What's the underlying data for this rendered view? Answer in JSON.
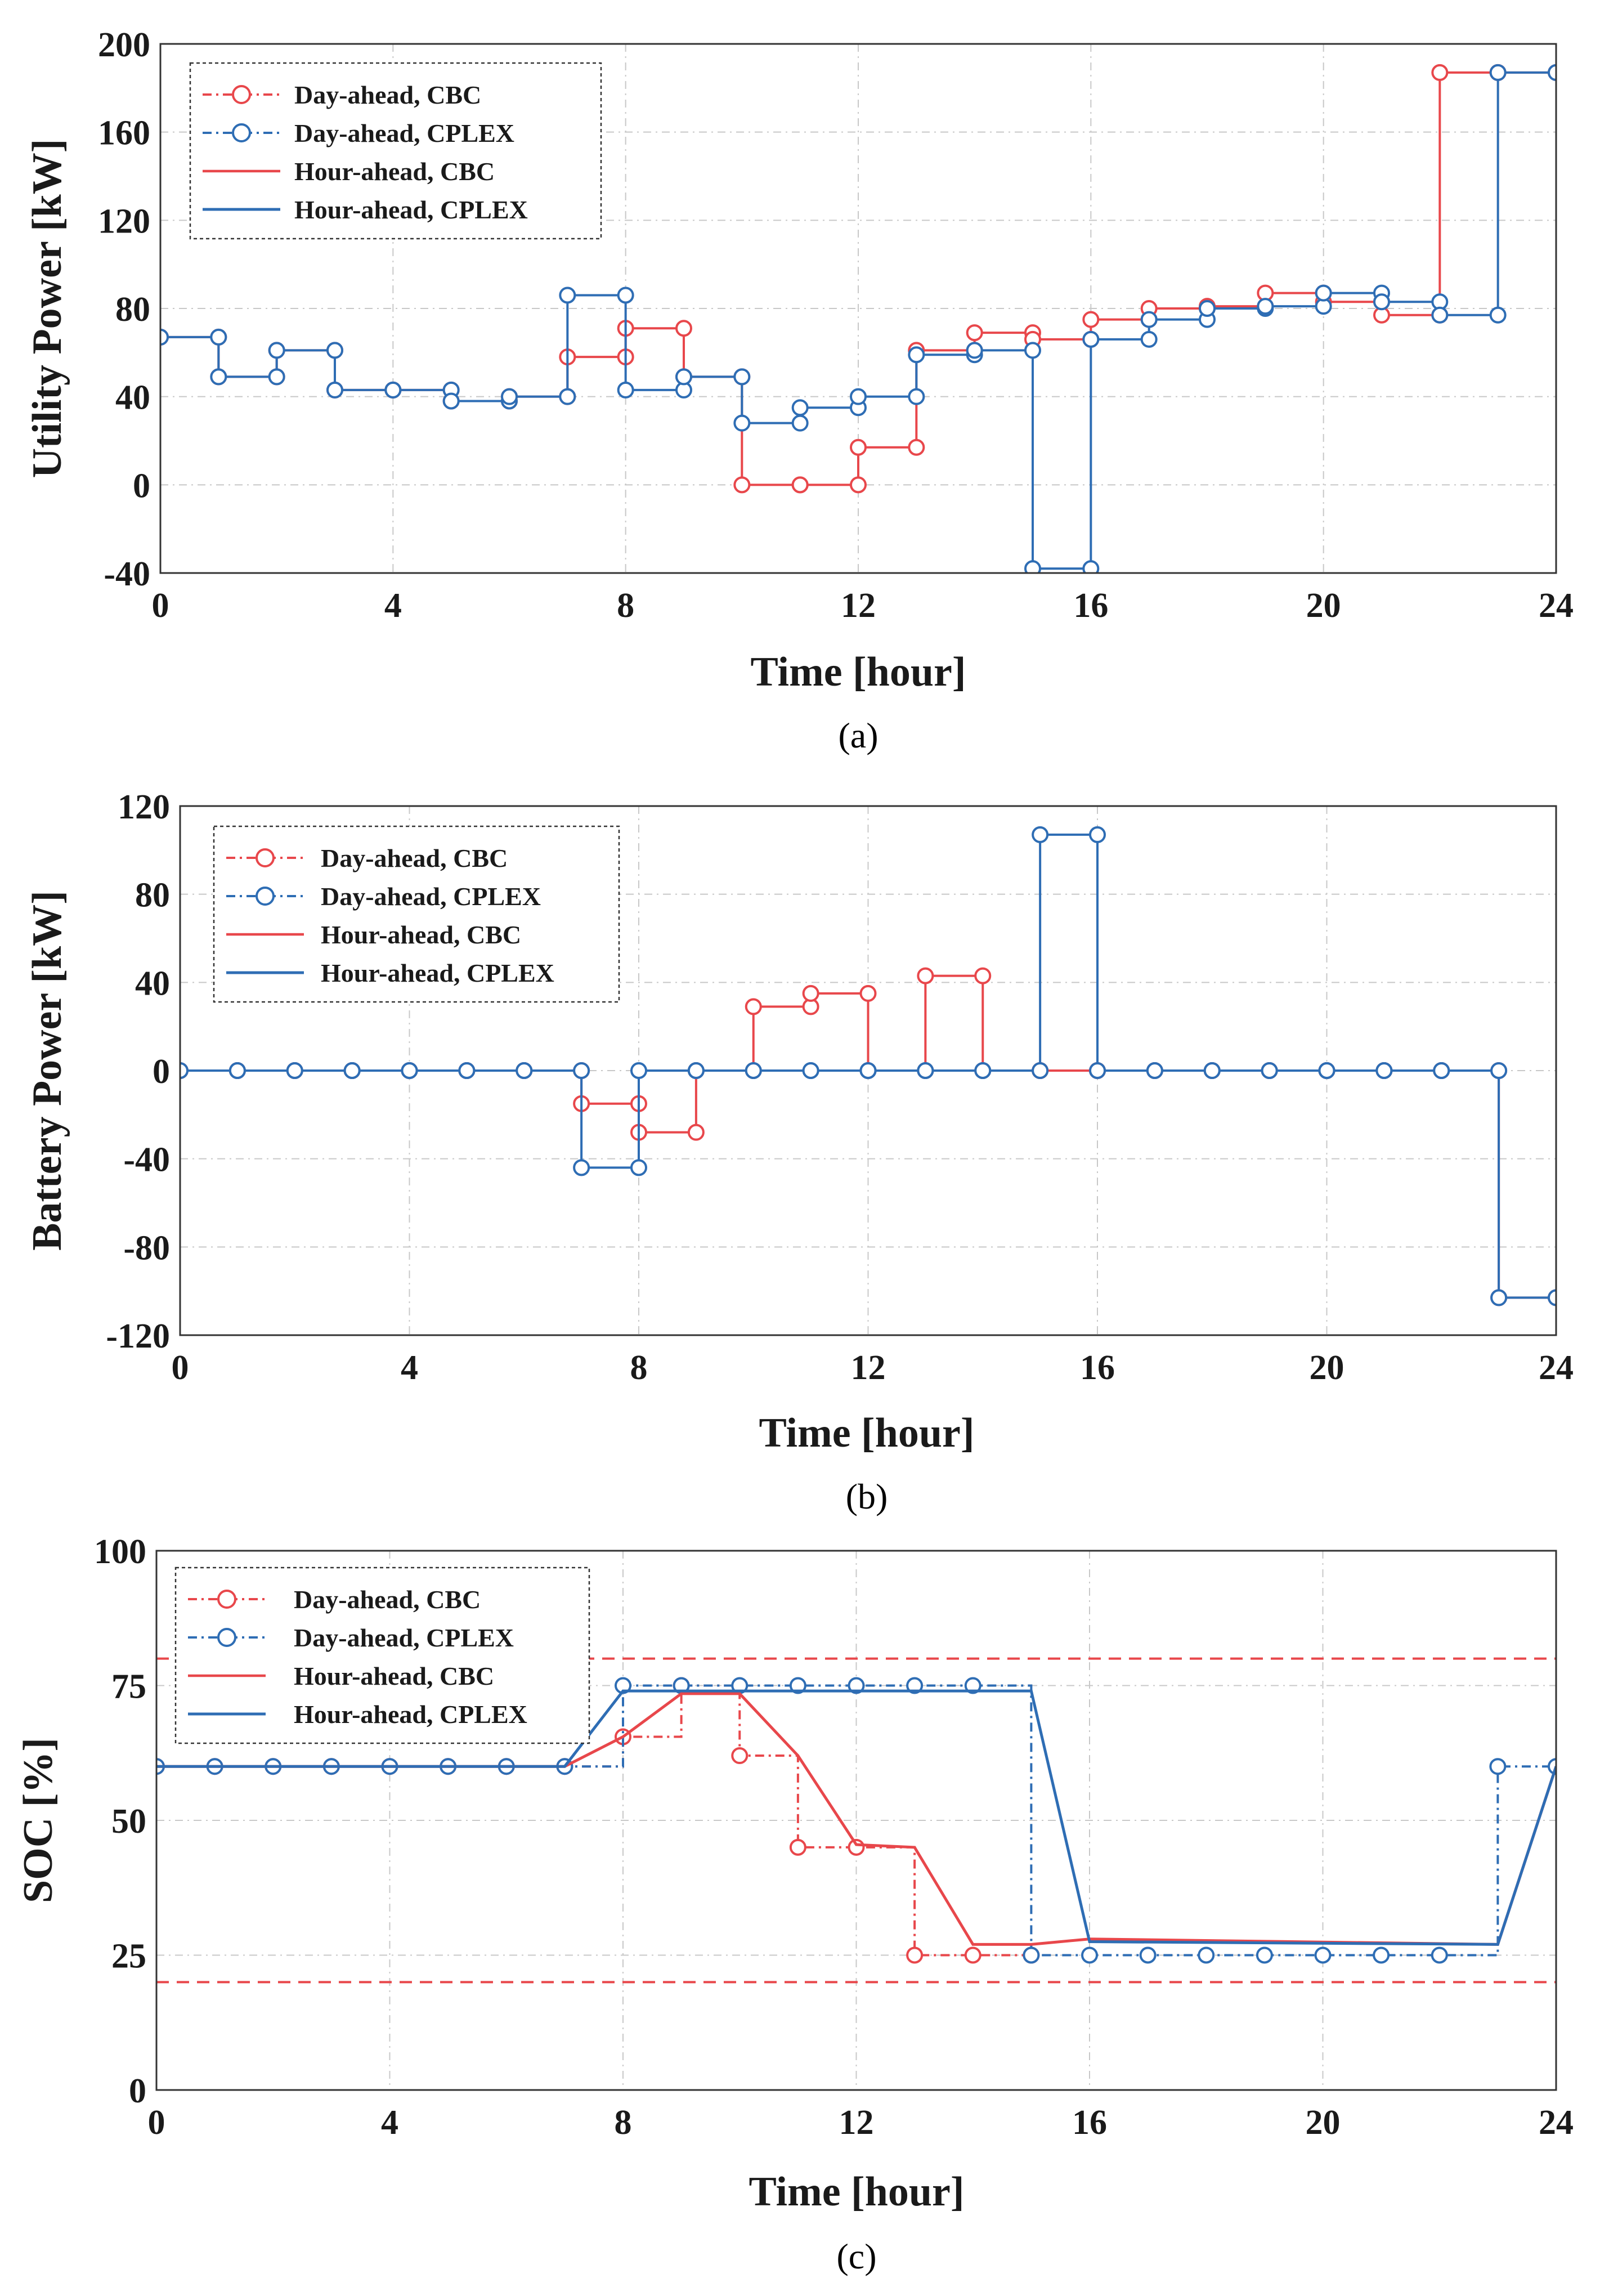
{
  "colors": {
    "cbc": "#e8474b",
    "cplex": "#2e6db4",
    "grid": "#c8c8c8",
    "limit": "#e8474b"
  },
  "chart_data": [
    {
      "id": "a",
      "type": "line",
      "caption": "(a)",
      "xlabel": "Time [hour]",
      "ylabel": "Utility Power [kW]",
      "xlim": [
        0,
        24
      ],
      "ylim": [
        -40,
        200
      ],
      "xticks": [
        0,
        4,
        8,
        12,
        16,
        20,
        24
      ],
      "yticks": [
        -40,
        0,
        40,
        80,
        120,
        160,
        200
      ],
      "legend_position": "top-left",
      "legend": [
        "Day-ahead, CBC",
        "Day-ahead, CPLEX",
        "Hour-ahead, CBC",
        "Hour-ahead, CPLEX"
      ],
      "series": [
        {
          "name": "Hour-ahead, CBC",
          "color": "cbc",
          "style": "step",
          "markers": true,
          "values": [
            67,
            49,
            61,
            43,
            43,
            38,
            40,
            58,
            71,
            49,
            0,
            0,
            17,
            61,
            69,
            66,
            75,
            80,
            81,
            87,
            83,
            77,
            187,
            187
          ]
        },
        {
          "name": "Hour-ahead, CPLEX",
          "color": "cplex",
          "style": "step",
          "markers": true,
          "values": [
            67,
            49,
            61,
            43,
            43,
            38,
            40,
            86,
            43,
            49,
            28,
            35,
            40,
            59,
            61,
            -38,
            66,
            75,
            80,
            81,
            87,
            83,
            77,
            187
          ]
        }
      ]
    },
    {
      "id": "b",
      "type": "line",
      "caption": "(b)",
      "xlabel": "Time [hour]",
      "ylabel": "Battery Power [kW]",
      "xlim": [
        0,
        24
      ],
      "ylim": [
        -120,
        120
      ],
      "xticks": [
        0,
        4,
        8,
        12,
        16,
        20,
        24
      ],
      "yticks": [
        -120,
        -80,
        -40,
        0,
        40,
        80,
        120
      ],
      "legend_position": "top-left",
      "legend": [
        "Day-ahead, CBC",
        "Day-ahead, CPLEX",
        "Hour-ahead, CBC",
        "Hour-ahead, CPLEX"
      ],
      "series": [
        {
          "name": "Hour-ahead, CBC",
          "color": "cbc",
          "style": "step",
          "markers": true,
          "values": [
            0,
            0,
            0,
            0,
            0,
            0,
            0,
            -15,
            -28,
            0,
            29,
            35,
            0,
            43,
            0,
            0,
            0,
            0,
            0,
            0,
            0,
            0,
            0,
            -103
          ]
        },
        {
          "name": "Hour-ahead, CPLEX",
          "color": "cplex",
          "style": "step",
          "markers": true,
          "values": [
            0,
            0,
            0,
            0,
            0,
            0,
            0,
            -44,
            0,
            0,
            0,
            0,
            0,
            0,
            0,
            107,
            0,
            0,
            0,
            0,
            0,
            0,
            0,
            -103
          ]
        }
      ]
    },
    {
      "id": "c",
      "type": "line",
      "caption": "(c)",
      "xlabel": "Time [hour]",
      "ylabel": "SOC [%]",
      "xlim": [
        0,
        24
      ],
      "ylim": [
        0,
        100
      ],
      "xticks": [
        0,
        4,
        8,
        12,
        16,
        20,
        24
      ],
      "yticks": [
        0,
        25,
        50,
        75,
        100
      ],
      "limits": [
        80,
        20
      ],
      "legend_position": "top-left",
      "legend": [
        "Day-ahead, CBC",
        "Day-ahead, CPLEX",
        "Hour-ahead, CBC",
        "Hour-ahead, CPLEX"
      ],
      "series": [
        {
          "name": "Day-ahead, CBC",
          "color": "cbc",
          "style": "stepdash",
          "markers": true,
          "x": [
            0,
            1,
            2,
            3,
            4,
            5,
            6,
            7,
            8,
            9,
            10,
            11,
            12,
            13,
            14,
            15
          ],
          "values": [
            60,
            60,
            60,
            60,
            60,
            60,
            60,
            60,
            65.5,
            75,
            62,
            45,
            45,
            25,
            25,
            25
          ]
        },
        {
          "name": "Day-ahead, CPLEX",
          "color": "cplex",
          "style": "stepdash",
          "markers": true,
          "x": [
            0,
            1,
            2,
            3,
            4,
            5,
            6,
            7,
            8,
            9,
            10,
            11,
            12,
            13,
            14,
            15,
            16,
            17,
            18,
            19,
            20,
            21,
            22,
            23,
            24
          ],
          "values": [
            60,
            60,
            60,
            60,
            60,
            60,
            60,
            60,
            75,
            75,
            75,
            75,
            75,
            75,
            75,
            25,
            25,
            25,
            25,
            25,
            25,
            25,
            25,
            60,
            60
          ]
        },
        {
          "name": "Hour-ahead, CBC",
          "color": "cbc",
          "style": "line",
          "markers": false,
          "x": [
            0,
            7,
            8,
            9,
            10,
            11,
            12,
            13,
            14,
            15,
            16,
            23,
            24
          ],
          "values": [
            60,
            60,
            65.5,
            73.5,
            73.5,
            62,
            45.5,
            45,
            27,
            27,
            28,
            27,
            60
          ]
        },
        {
          "name": "Hour-ahead, CPLEX",
          "color": "cplex",
          "style": "line",
          "markers": false,
          "x": [
            0,
            7,
            8,
            15,
            16,
            23,
            24
          ],
          "values": [
            60,
            60,
            74,
            74,
            27.5,
            27,
            60
          ]
        }
      ]
    }
  ]
}
